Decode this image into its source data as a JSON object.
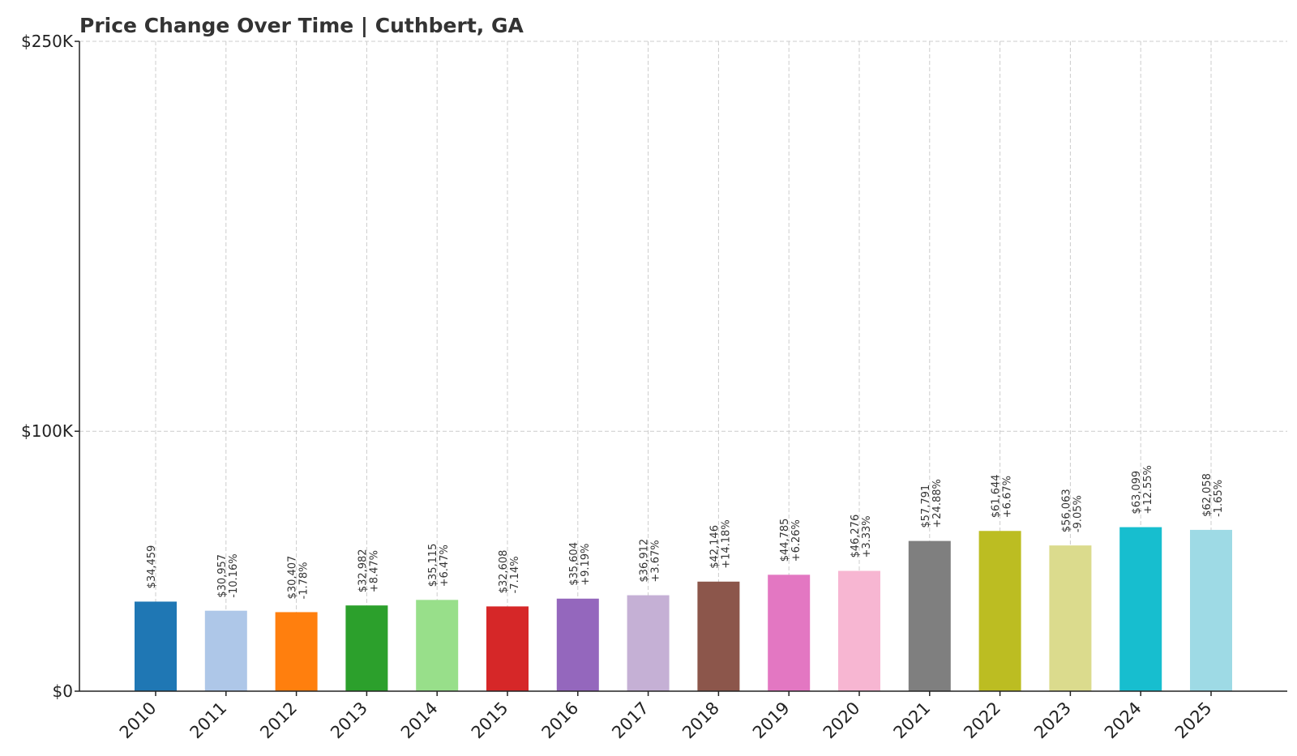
{
  "chart_data": {
    "type": "bar",
    "title": "Price Change Over Time | Cuthbert, GA",
    "xlabel": "",
    "ylabel": "",
    "ylim": [
      0,
      250000
    ],
    "yticks": [
      0,
      100000,
      250000
    ],
    "ytick_labels": [
      "$0",
      "$100K",
      "$250K"
    ],
    "grid": true,
    "categories": [
      "2010",
      "2011",
      "2012",
      "2013",
      "2014",
      "2015",
      "2016",
      "2017",
      "2018",
      "2019",
      "2020",
      "2021",
      "2022",
      "2023",
      "2024",
      "2025"
    ],
    "values": [
      34459,
      30957,
      30407,
      32982,
      35115,
      32608,
      35604,
      36912,
      42146,
      44785,
      46276,
      57791,
      61644,
      56063,
      63099,
      62058
    ],
    "value_labels": [
      "$34,459",
      "$30,957",
      "$30,407",
      "$32,982",
      "$35,115",
      "$32,608",
      "$35,604",
      "$36,912",
      "$42,146",
      "$44,785",
      "$46,276",
      "$57,791",
      "$61,644",
      "$56,063",
      "$63,099",
      "$62,058"
    ],
    "change_labels": [
      "",
      "-10.16%",
      "-1.78%",
      "+8.47%",
      "+6.47%",
      "-7.14%",
      "+9.19%",
      "+3.67%",
      "+14.18%",
      "+6.26%",
      "+3.33%",
      "+24.88%",
      "+6.67%",
      "-9.05%",
      "+12.55%",
      "-1.65%"
    ],
    "colors": [
      "#1f77b4",
      "#aec7e8",
      "#ff7f0e",
      "#2ca02c",
      "#98df8a",
      "#d62728",
      "#9467bd",
      "#c5b0d5",
      "#8c564b",
      "#e377c2",
      "#f7b6d2",
      "#7f7f7f",
      "#bcbd22",
      "#dbdb8d",
      "#17becf",
      "#9edae5"
    ]
  }
}
